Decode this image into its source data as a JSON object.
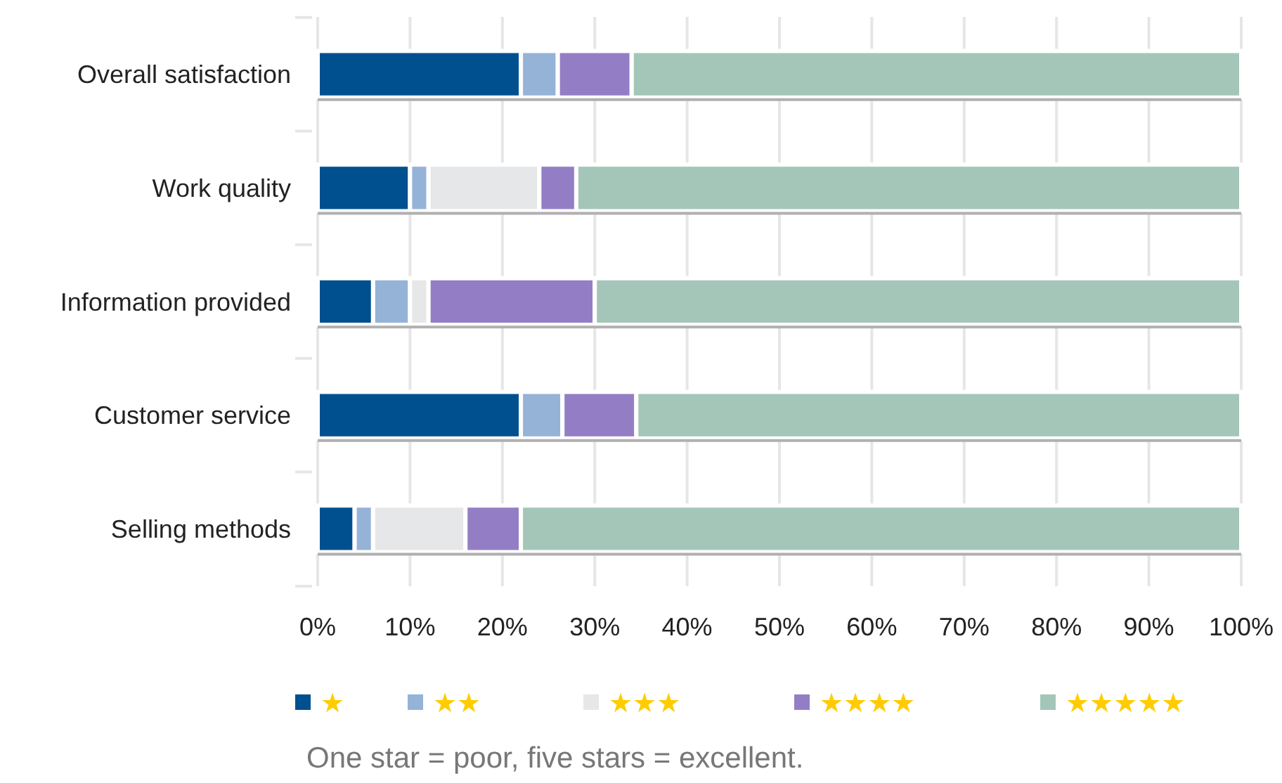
{
  "chart_data": {
    "type": "bar",
    "orientation": "horizontal",
    "stacked": true,
    "categories": [
      "Overall satisfaction",
      "Work quality",
      "Information provided",
      "Customer service",
      "Selling methods"
    ],
    "series": [
      {
        "name": "★",
        "color": "#00508f",
        "values": [
          22,
          10,
          6,
          22,
          4
        ]
      },
      {
        "name": "★★",
        "color": "#95b3d7",
        "values": [
          4,
          2,
          4,
          4.5,
          2
        ]
      },
      {
        "name": "★★★",
        "color": "#e6e7e8",
        "values": [
          0,
          12,
          2,
          0,
          10
        ]
      },
      {
        "name": "★★★★",
        "color": "#937ec6",
        "values": [
          8,
          4,
          18,
          8,
          6
        ]
      },
      {
        "name": "★★★★★",
        "color": "#a3c6b8",
        "values": [
          66,
          72,
          70,
          65.5,
          78
        ]
      }
    ],
    "xlim": [
      0,
      100
    ],
    "xticks": [
      {
        "value": 0,
        "label": "0%"
      },
      {
        "value": 10,
        "label": "10%"
      },
      {
        "value": 20,
        "label": "20%"
      },
      {
        "value": 30,
        "label": "30%"
      },
      {
        "value": 40,
        "label": "40%"
      },
      {
        "value": 50,
        "label": "50%"
      },
      {
        "value": 60,
        "label": "60%"
      },
      {
        "value": 70,
        "label": "70%"
      },
      {
        "value": 80,
        "label": "80%"
      },
      {
        "value": 90,
        "label": "90%"
      },
      {
        "value": 100,
        "label": "100%"
      }
    ],
    "grid": "x",
    "legend": "bottom",
    "annotations": [
      "One star = poor, five stars = excellent."
    ]
  }
}
